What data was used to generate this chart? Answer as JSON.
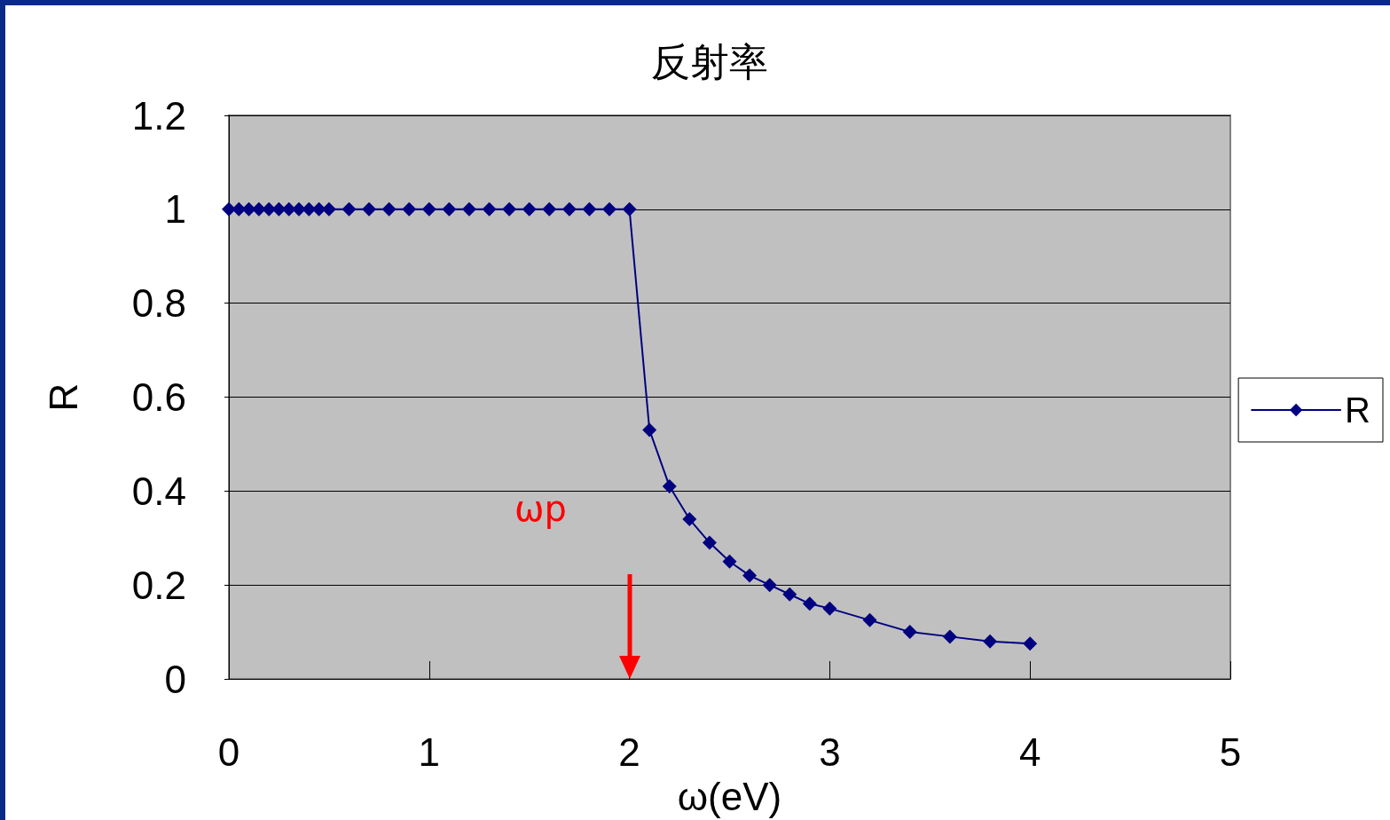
{
  "chart_data": {
    "type": "line",
    "title": "反射率",
    "xlabel": "ω(eV)",
    "ylabel": "R",
    "x": [
      0,
      0.05,
      0.1,
      0.15,
      0.2,
      0.25,
      0.3,
      0.35,
      0.4,
      0.45,
      0.5,
      0.6,
      0.7,
      0.8,
      0.9,
      1.0,
      1.1,
      1.2,
      1.3,
      1.4,
      1.5,
      1.6,
      1.7,
      1.8,
      1.9,
      2.0,
      2.1,
      2.2,
      2.3,
      2.4,
      2.5,
      2.6,
      2.7,
      2.8,
      2.9,
      3.0,
      3.2,
      3.4,
      3.6,
      3.8,
      4.0
    ],
    "series": [
      {
        "name": "R",
        "color": "#000080",
        "values": [
          1,
          1,
          1,
          1,
          1,
          1,
          1,
          1,
          1,
          1,
          1,
          1,
          1,
          1,
          1,
          1,
          1,
          1,
          1,
          1,
          1,
          1,
          1,
          1,
          1,
          1,
          0.53,
          0.41,
          0.34,
          0.29,
          0.25,
          0.22,
          0.2,
          0.18,
          0.16,
          0.15,
          0.125,
          0.1,
          0.09,
          0.08,
          0.075
        ]
      }
    ],
    "xlim": [
      0,
      5
    ],
    "xticks": [
      0,
      1,
      2,
      3,
      4,
      5
    ],
    "ylim": [
      0,
      1.2
    ],
    "yticks": [
      0,
      0.2,
      0.4,
      0.6,
      0.8,
      1,
      1.2
    ],
    "grid": "y",
    "legend": "right",
    "marker": "diamond",
    "line_style": "solid",
    "annotations": [
      "ωp"
    ]
  }
}
